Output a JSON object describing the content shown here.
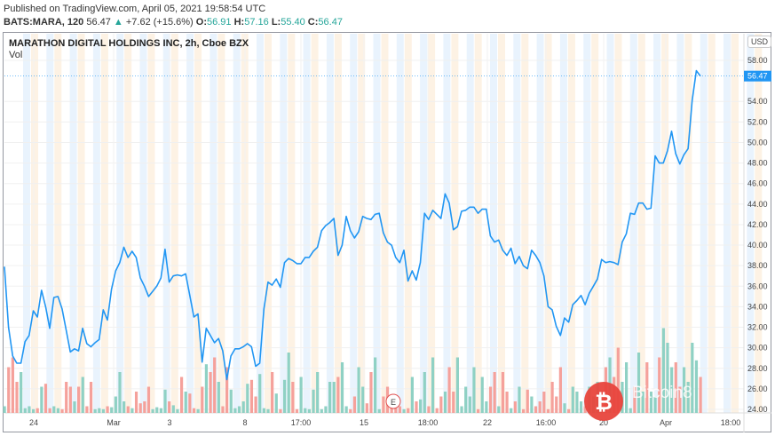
{
  "header": {
    "published": "Published on TradingView.com, April 05, 2021 19:58:54 UTC",
    "symbol": "BATS:MARA, 120",
    "last": "56.47",
    "change": "+7.62 (+15.6%)",
    "o_label": "O:",
    "o": "56.91",
    "h_label": "H:",
    "h": "57.16",
    "l_label": "L:",
    "l": "55.40",
    "c_label": "C:",
    "c": "56.47"
  },
  "legend": {
    "title": "MARATHON DIGITAL HOLDINGS INC, 2h, Cboe BZX",
    "volume": "Vol"
  },
  "currency": "USD",
  "watermark": {
    "text": "Bitcoin8",
    "badge": "E"
  },
  "colors": {
    "line": "#2196f3",
    "up": "#8fd1c4",
    "down": "#f5a19b",
    "last_price_bg": "#2196f3"
  },
  "chart_data": {
    "type": "line",
    "title": "MARATHON DIGITAL HOLDINGS INC, 2h, Cboe BZX",
    "ylim": [
      24,
      58
    ],
    "yticks": [
      "58.00",
      "54.00",
      "52.00",
      "50.00",
      "48.00",
      "46.00",
      "44.00",
      "42.00",
      "40.00",
      "38.00",
      "36.00",
      "34.00",
      "32.00",
      "30.00",
      "28.00",
      "26.00",
      "24.00"
    ],
    "xticks": [
      "24",
      "Mar",
      "3",
      "8",
      "17:00",
      "15",
      "18:00",
      "22",
      "16:00",
      "20",
      "Apr",
      "18:00"
    ],
    "last_price_label": "56.47",
    "price": [
      37.9,
      32.0,
      29.2,
      28.5,
      28.5,
      30.6,
      31.2,
      33.6,
      33.0,
      35.6,
      34.0,
      31.9,
      34.9,
      35.0,
      33.8,
      31.7,
      29.6,
      29.9,
      29.7,
      31.9,
      30.4,
      30.1,
      30.5,
      30.8,
      33.7,
      32.7,
      35.7,
      37.5,
      38.3,
      39.8,
      38.8,
      39.4,
      38.8,
      36.8,
      36.0,
      35.0,
      35.5,
      36.0,
      36.8,
      39.6,
      36.4,
      37.0,
      37.1,
      37.0,
      37.2,
      35.1,
      33.0,
      33.3,
      28.6,
      31.9,
      31.2,
      30.5,
      30.9,
      29.7,
      26.9,
      29.2,
      29.9,
      29.9,
      30.1,
      30.4,
      30.1,
      28.2,
      28.5,
      33.8,
      36.4,
      36.1,
      36.7,
      35.9,
      38.3,
      38.7,
      38.5,
      38.2,
      38.2,
      38.8,
      38.8,
      39.4,
      39.8,
      41.4,
      41.9,
      42.2,
      42.6,
      39.0,
      40.0,
      42.8,
      41.4,
      40.7,
      41.3,
      42.8,
      42.6,
      42.5,
      43.0,
      43.1,
      41.2,
      40.3,
      40.0,
      38.8,
      38.3,
      39.5,
      36.5,
      37.5,
      36.6,
      38.3,
      43.1,
      42.5,
      43.4,
      43.0,
      42.6,
      45.0,
      44.1,
      41.5,
      41.8,
      43.3,
      43.4,
      43.7,
      43.7,
      43.1,
      43.5,
      43.5,
      40.9,
      40.3,
      40.5,
      39.5,
      39.0,
      39.7,
      38.2,
      38.9,
      38.0,
      37.7,
      39.5,
      39.0,
      38.3,
      37.0,
      34.0,
      33.7,
      32.1,
      31.2,
      32.9,
      32.5,
      34.2,
      34.6,
      35.1,
      34.2,
      35.3,
      36.0,
      36.7,
      38.6,
      38.3,
      38.4,
      38.3,
      38.1,
      40.3,
      41.1,
      43.1,
      43.0,
      44.1,
      44.1,
      43.5,
      43.6,
      48.7,
      48.0,
      48.0,
      49.2,
      51.1,
      48.9,
      47.9,
      48.8,
      49.4,
      54.1,
      57.0,
      56.47
    ],
    "volume_relative": [
      5,
      45,
      55,
      30,
      40,
      3,
      5,
      2,
      3,
      25,
      28,
      3,
      5,
      3,
      2,
      30,
      25,
      10,
      25,
      35,
      5,
      30,
      2,
      3,
      2,
      5,
      4,
      15,
      40,
      10,
      5,
      3,
      20,
      8,
      10,
      25,
      2,
      4,
      3,
      22,
      10,
      6,
      2,
      35,
      20,
      18,
      3,
      2,
      25,
      48,
      40,
      55,
      30,
      5,
      45,
      22,
      3,
      5,
      10,
      28,
      32,
      15,
      38,
      3,
      2,
      40,
      18,
      2,
      32,
      60,
      30,
      2,
      35,
      3,
      2,
      22,
      40,
      2,
      5,
      30,
      30,
      35,
      50,
      5,
      2,
      15,
      45,
      25,
      8,
      40,
      55,
      2,
      15,
      25,
      4,
      10,
      5,
      2,
      3,
      35,
      10,
      12,
      40,
      5,
      55,
      3,
      15,
      20,
      45,
      20,
      55,
      5,
      25,
      15,
      45,
      2,
      35,
      10,
      25,
      40,
      5,
      40,
      20,
      3,
      10,
      25,
      2,
      22,
      15,
      5,
      10,
      20,
      2,
      30,
      15,
      45,
      8,
      2,
      25,
      20,
      10,
      5,
      25,
      15,
      30,
      2,
      45,
      55,
      35,
      65,
      30,
      50,
      3,
      25,
      60,
      20,
      50,
      20,
      15,
      55,
      85,
      70,
      45,
      50,
      25,
      45,
      30,
      70,
      52,
      35
    ]
  }
}
